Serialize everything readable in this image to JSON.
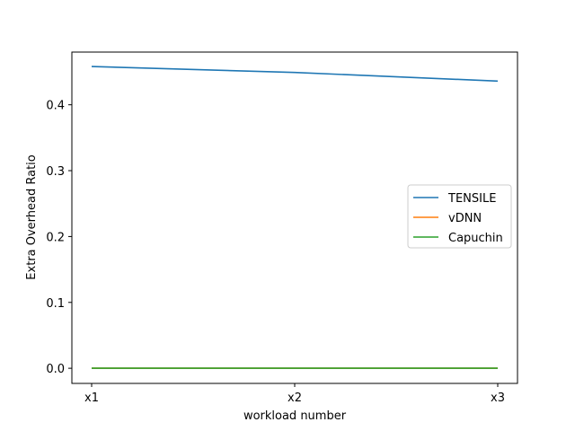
{
  "chart_data": {
    "type": "line",
    "title": "",
    "xlabel": "workload number",
    "ylabel": "Extra Overhead Ratio",
    "categories": [
      "x1",
      "x2",
      "x3"
    ],
    "ylim": [
      -0.023,
      0.48
    ],
    "yticks": [
      0.0,
      0.1,
      0.2,
      0.3,
      0.4
    ],
    "ytick_labels": [
      "0.0",
      "0.1",
      "0.2",
      "0.3",
      "0.4"
    ],
    "grid": false,
    "legend_position": "center-right",
    "series": [
      {
        "name": "TENSILE",
        "color": "#1f77b4",
        "values": [
          0.458,
          0.449,
          0.436
        ]
      },
      {
        "name": "vDNN",
        "color": "#ff7f0e",
        "values": [
          0.0,
          0.0,
          0.0
        ]
      },
      {
        "name": "Capuchin",
        "color": "#2ca02c",
        "values": [
          0.0,
          0.0,
          0.0
        ]
      }
    ]
  }
}
